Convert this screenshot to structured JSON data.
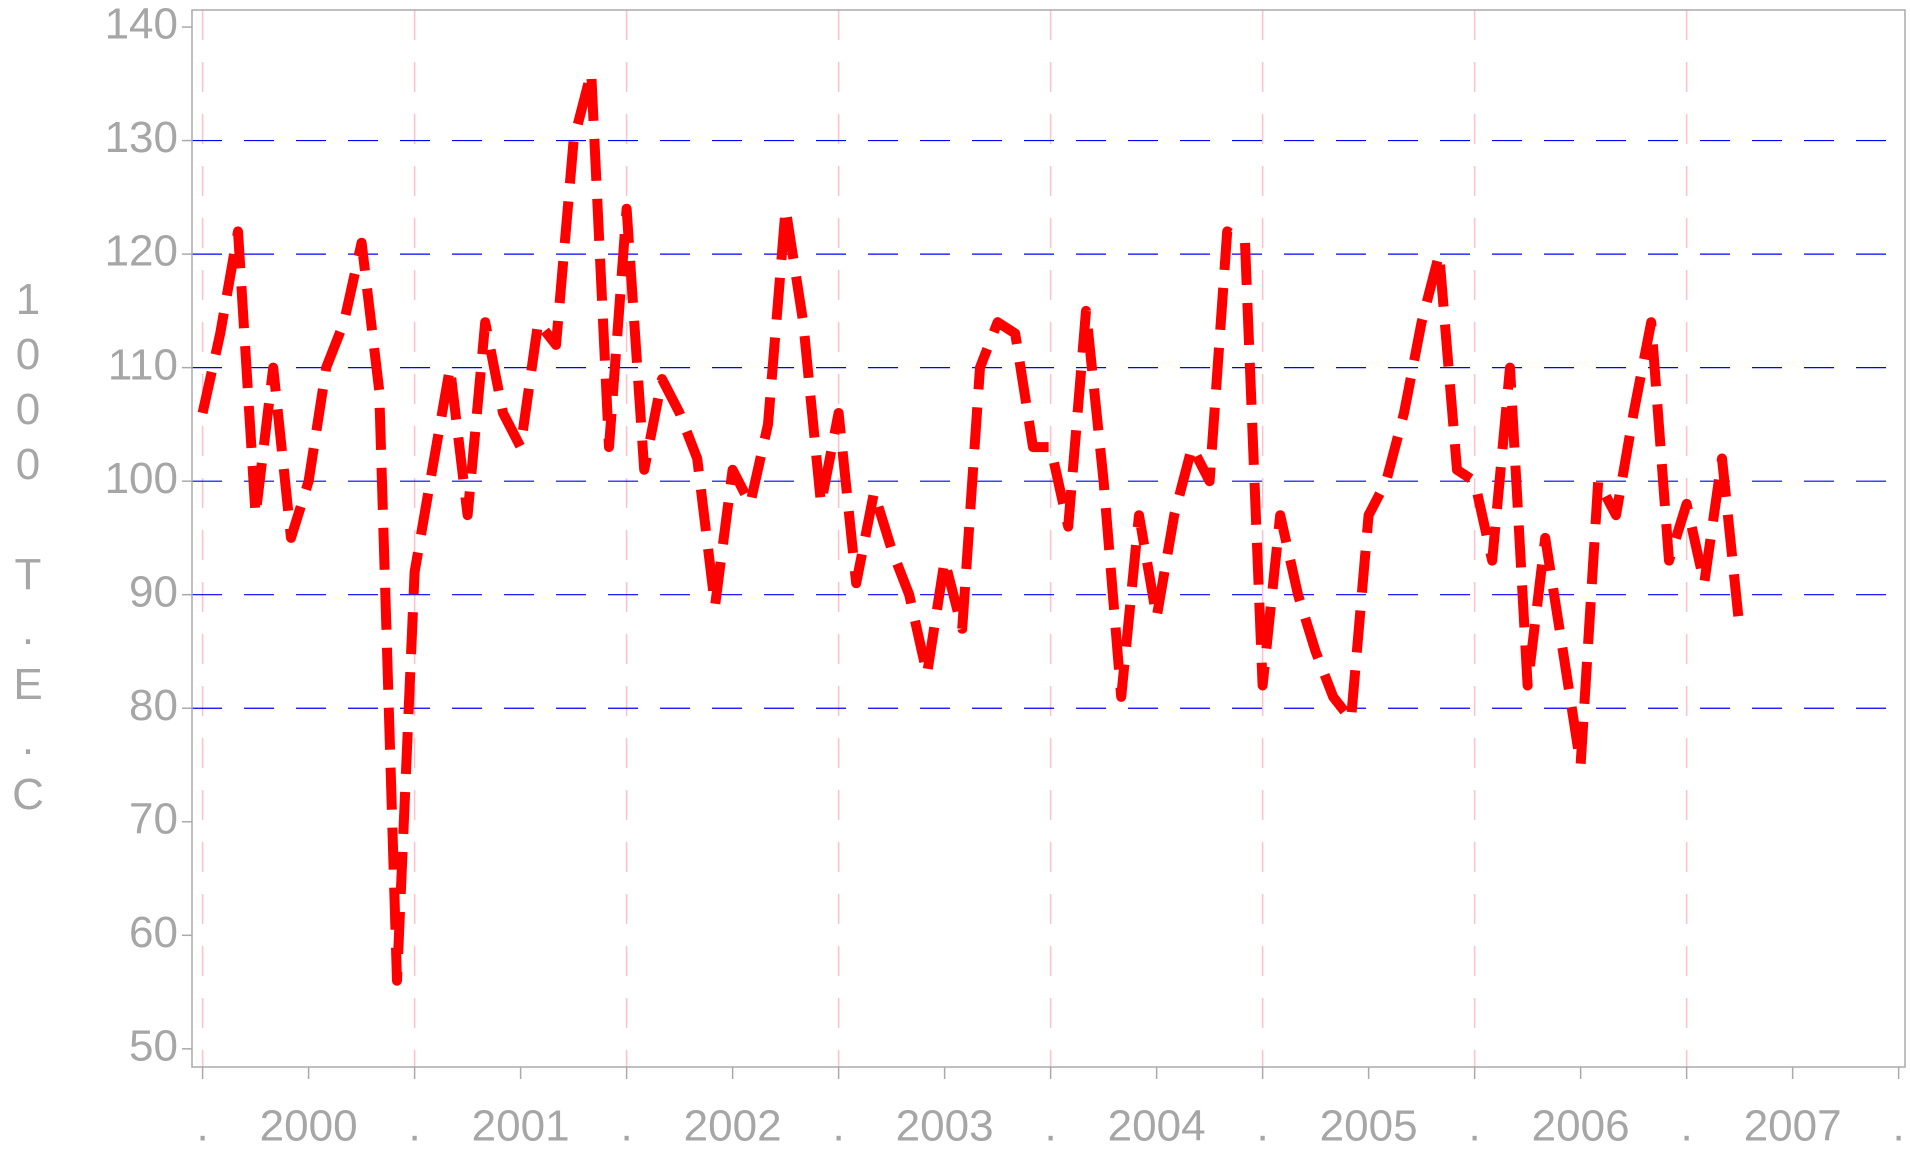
{
  "chart_data": {
    "type": "line",
    "y_label": "1000 T.E.C",
    "xlim": [
      1999.95,
      2008.03
    ],
    "ylim": [
      48.4,
      141.5
    ],
    "xticks": [
      {
        "value": 2000,
        "label": "."
      },
      {
        "value": 2000.5,
        "label": "2000"
      },
      {
        "value": 2001,
        "label": "."
      },
      {
        "value": 2001.5,
        "label": "2001"
      },
      {
        "value": 2002,
        "label": "."
      },
      {
        "value": 2002.5,
        "label": "2002"
      },
      {
        "value": 2003,
        "label": "."
      },
      {
        "value": 2003.5,
        "label": "2003"
      },
      {
        "value": 2004,
        "label": "."
      },
      {
        "value": 2004.5,
        "label": "2004"
      },
      {
        "value": 2005,
        "label": "."
      },
      {
        "value": 2005.5,
        "label": "2005"
      },
      {
        "value": 2006,
        "label": "."
      },
      {
        "value": 2006.5,
        "label": "2006"
      },
      {
        "value": 2007,
        "label": "."
      },
      {
        "value": 2007.5,
        "label": "2007"
      },
      {
        "value": 2008,
        "label": "."
      }
    ],
    "yticks": [
      50,
      60,
      70,
      80,
      90,
      100,
      110,
      120,
      130,
      140
    ],
    "xgrid": [
      2000,
      2001,
      2002,
      2003,
      2004,
      2005,
      2006,
      2007
    ],
    "ygrid": [
      80,
      90,
      100,
      110,
      120,
      130
    ],
    "xgrid_color": "#ffc0cb",
    "ygrid_color": "#0000ff",
    "x": [
      2000,
      2000.083,
      2000.167,
      2000.25,
      2000.333,
      2000.417,
      2000.5,
      2000.583,
      2000.667,
      2000.75,
      2000.833,
      2000.917,
      2001,
      2001.083,
      2001.167,
      2001.25,
      2001.333,
      2001.417,
      2001.5,
      2001.583,
      2001.667,
      2001.75,
      2001.833,
      2001.917,
      2002,
      2002.083,
      2002.167,
      2002.25,
      2002.333,
      2002.417,
      2002.5,
      2002.583,
      2002.667,
      2002.75,
      2002.833,
      2002.917,
      2003,
      2003.083,
      2003.167,
      2003.25,
      2003.333,
      2003.417,
      2003.5,
      2003.583,
      2003.667,
      2003.75,
      2003.833,
      2003.917,
      2004,
      2004.083,
      2004.167,
      2004.25,
      2004.333,
      2004.417,
      2004.5,
      2004.583,
      2004.667,
      2004.75,
      2004.833,
      2004.917,
      2005,
      2005.083,
      2005.167,
      2005.25,
      2005.333,
      2005.417,
      2005.5,
      2005.583,
      2005.667,
      2005.75,
      2005.833,
      2005.917,
      2006,
      2006.083,
      2006.167,
      2006.25,
      2006.333,
      2006.417,
      2006.5,
      2006.583,
      2006.667,
      2006.75,
      2006.833,
      2006.917,
      2007,
      2007.083,
      2007.167,
      2007.25
    ],
    "series": [
      {
        "color": "#ff0000",
        "values": [
          106,
          113,
          122,
          97,
          110,
          95,
          100,
          110,
          114,
          121,
          108,
          56,
          92,
          101,
          110,
          97,
          114,
          106,
          103,
          114,
          112,
          130,
          136,
          103,
          124,
          101,
          109,
          106,
          102,
          89,
          101,
          98,
          105,
          124,
          114,
          98,
          106,
          91,
          99,
          94,
          90,
          83,
          93,
          87,
          110,
          114,
          113,
          103,
          103,
          96,
          115,
          100,
          81,
          97,
          88,
          97,
          103,
          100,
          122,
          121,
          82,
          97,
          90,
          85,
          81,
          79,
          97,
          100,
          106,
          114,
          120,
          101,
          100,
          93,
          110,
          82,
          95,
          85,
          75,
          100,
          97,
          106,
          114,
          93,
          98,
          91,
          102,
          87
        ]
      }
    ]
  }
}
